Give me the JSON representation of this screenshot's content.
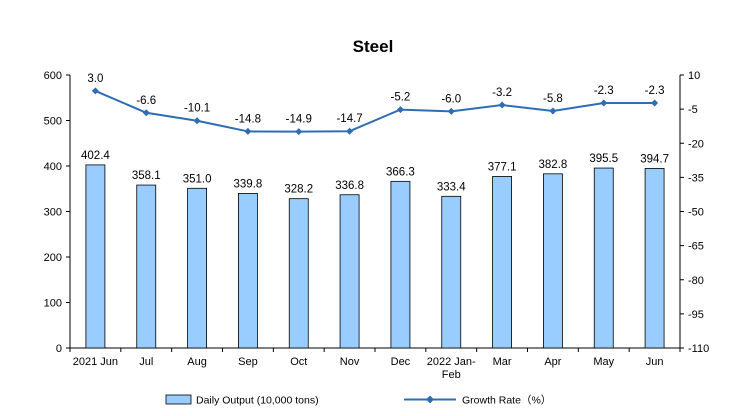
{
  "chart_data": {
    "type": "bar",
    "title": "Steel",
    "categories": [
      "2021 Jun",
      "Jul",
      "Aug",
      "Sep",
      "Oct",
      "Nov",
      "Dec",
      "2022 Jan-Feb",
      "Mar",
      "Apr",
      "May",
      "Jun"
    ],
    "category_labels": [
      [
        "2021 Jun"
      ],
      [
        "Jul"
      ],
      [
        "Aug"
      ],
      [
        "Sep"
      ],
      [
        "Oct"
      ],
      [
        "Nov"
      ],
      [
        "Dec"
      ],
      [
        "2022 Jan-",
        "Feb"
      ],
      [
        "Mar"
      ],
      [
        "Apr"
      ],
      [
        "May"
      ],
      [
        "Jun"
      ]
    ],
    "series": [
      {
        "name": "Daily Output (10,000 tons)",
        "type": "bar",
        "axis": "left",
        "color": "#99ccff",
        "values": [
          402.4,
          358.1,
          351.0,
          339.8,
          328.2,
          336.8,
          366.3,
          333.4,
          377.1,
          382.8,
          395.5,
          394.7
        ],
        "labels": [
          "402.4",
          "358.1",
          "351.0",
          "339.8",
          "328.2",
          "336.8",
          "366.3",
          "333.4",
          "377.1",
          "382.8",
          "395.5",
          "394.7"
        ]
      },
      {
        "name": "Growth Rate（%）",
        "type": "line",
        "axis": "right",
        "color": "#2e6db4",
        "values": [
          3.0,
          -6.6,
          -10.1,
          -14.8,
          -14.9,
          -14.7,
          -5.2,
          -6.0,
          -3.2,
          -5.8,
          -2.3,
          -2.3
        ],
        "labels": [
          "3.0",
          "-6.6",
          "-10.1",
          "-14.8",
          "-14.9",
          "-14.7",
          "-5.2",
          "-6.0",
          "-3.2",
          "-5.8",
          "-2.3",
          "-2.3"
        ]
      }
    ],
    "y_left": {
      "min": 0,
      "max": 600,
      "ticks": [
        "0",
        "100",
        "200",
        "300",
        "400",
        "500",
        "600"
      ]
    },
    "y_right": {
      "min": -110,
      "max": 10,
      "ticks": [
        "10",
        "-5",
        "-20",
        "-35",
        "-50",
        "-65",
        "-80",
        "-95",
        "-110"
      ]
    },
    "grid": false,
    "legend_position": "bottom"
  }
}
